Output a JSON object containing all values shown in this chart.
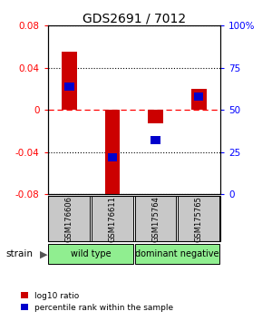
{
  "title": "GDS2691 / 7012",
  "samples": [
    "GSM176606",
    "GSM176611",
    "GSM175764",
    "GSM175765"
  ],
  "log10_ratio": [
    0.055,
    -0.088,
    -0.013,
    0.02
  ],
  "percentile_rank": [
    0.64,
    0.22,
    0.32,
    0.58
  ],
  "ylim": [
    -0.08,
    0.08
  ],
  "yticks_left": [
    -0.08,
    -0.04,
    0,
    0.04,
    0.08
  ],
  "yticks_right": [
    0,
    25,
    50,
    75,
    100
  ],
  "bar_color_red": "#cc0000",
  "bar_color_blue": "#0000cc",
  "sample_box_color": "#c8c8c8",
  "group_labels": [
    "wild type",
    "dominant negative"
  ],
  "group_color": "#90ee90",
  "legend_red": "log10 ratio",
  "legend_blue": "percentile rank within the sample",
  "strain_label": "strain",
  "bar_width": 0.35,
  "blue_bar_width": 0.22,
  "blue_bar_height": 0.008
}
